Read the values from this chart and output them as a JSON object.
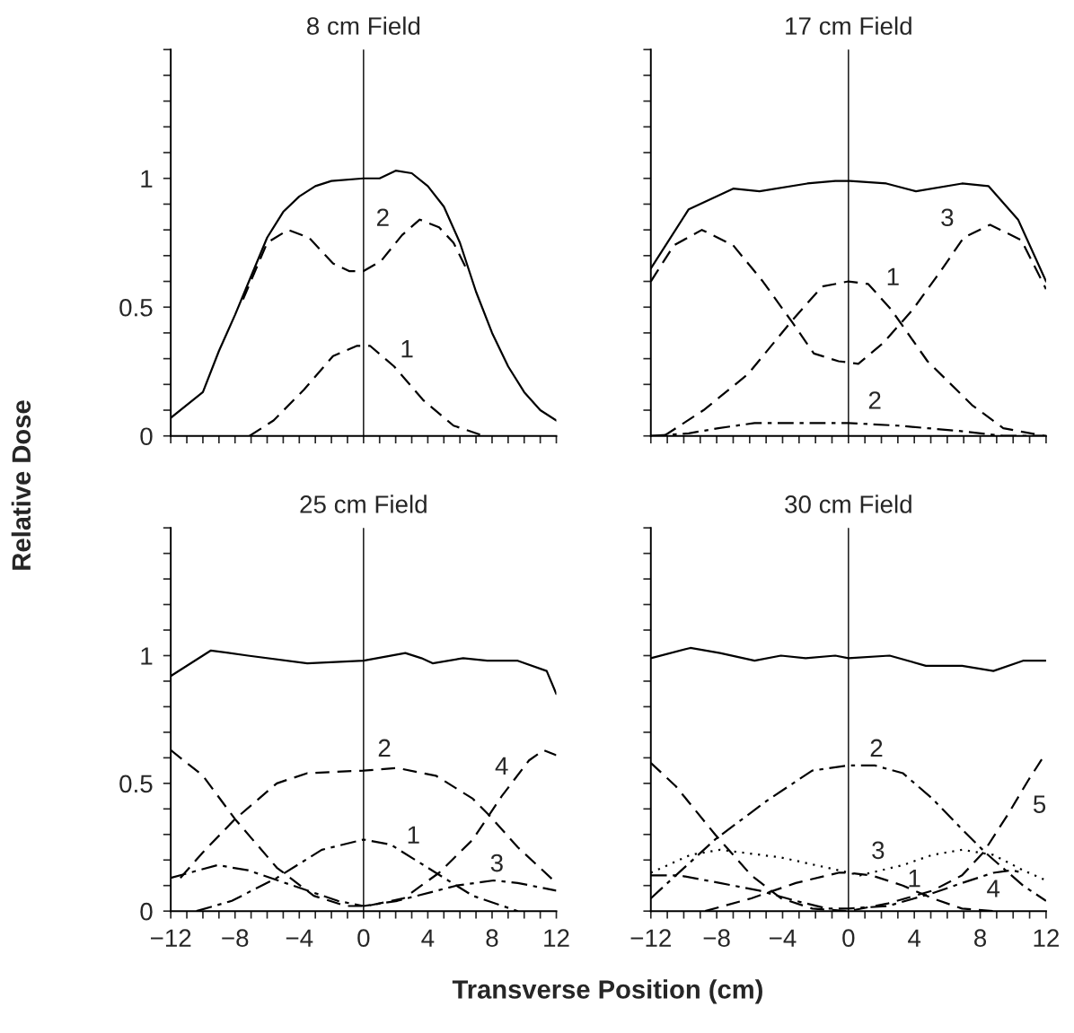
{
  "chart_data": [
    {
      "type": "line",
      "title": "8 cm Field",
      "ylabel": "Relative Dose",
      "xlim": [
        -12,
        12
      ],
      "ylim": [
        0,
        1.5
      ],
      "tick_labels": "y",
      "xticks": [
        {
          "value": -12,
          "label": null
        },
        {
          "value": -11,
          "label": null
        },
        {
          "value": -10,
          "label": null
        },
        {
          "value": -9,
          "label": null
        },
        {
          "value": -8,
          "label": null
        },
        {
          "value": -7,
          "label": null
        },
        {
          "value": -6,
          "label": null
        },
        {
          "value": -5,
          "label": null
        },
        {
          "value": -4,
          "label": null
        },
        {
          "value": -3,
          "label": null
        },
        {
          "value": -2,
          "label": null
        },
        {
          "value": -1,
          "label": null
        },
        {
          "value": 0,
          "label": null
        },
        {
          "value": 1,
          "label": null
        },
        {
          "value": 2,
          "label": null
        },
        {
          "value": 3,
          "label": null
        },
        {
          "value": 4,
          "label": null
        },
        {
          "value": 5,
          "label": null
        },
        {
          "value": 6,
          "label": null
        },
        {
          "value": 7,
          "label": null
        },
        {
          "value": 8,
          "label": null
        },
        {
          "value": 9,
          "label": null
        },
        {
          "value": 10,
          "label": null
        },
        {
          "value": 11,
          "label": null
        },
        {
          "value": 12,
          "label": null
        }
      ],
      "yticks": [
        0,
        {
          "value": 0.1,
          "label": null
        },
        {
          "value": 0.2,
          "label": null
        },
        {
          "value": 0.3,
          "label": null
        },
        {
          "value": 0.4,
          "label": null
        },
        0.5,
        {
          "value": 0.6,
          "label": null
        },
        {
          "value": 0.7,
          "label": null
        },
        {
          "value": 0.8,
          "label": null
        },
        {
          "value": 0.9,
          "label": null
        },
        1,
        {
          "value": 1.1,
          "label": null
        },
        {
          "value": 1.2,
          "label": null
        },
        {
          "value": 1.3,
          "label": null
        },
        {
          "value": 1.4,
          "label": null
        },
        {
          "value": 1.5,
          "label": null
        }
      ],
      "ref_lines": [
        {
          "axis": "x",
          "value": 0,
          "color": "#000000",
          "line_style": "solid"
        }
      ],
      "series": [
        {
          "color": "#000000",
          "line_style": "solid",
          "x": [
            -12,
            -10,
            -9,
            -8,
            -7,
            -6,
            -5,
            -4,
            -3,
            -2,
            0,
            1,
            2,
            3,
            4,
            5,
            6,
            7,
            8,
            9,
            10,
            11,
            12
          ],
          "values": [
            0.07,
            0.17,
            0.33,
            0.47,
            0.62,
            0.77,
            0.87,
            0.93,
            0.97,
            0.99,
            1.0,
            1.0,
            1.03,
            1.02,
            0.97,
            0.89,
            0.75,
            0.56,
            0.4,
            0.27,
            0.17,
            0.1,
            0.06
          ]
        },
        {
          "name": "2",
          "color": "#000000",
          "line_style": "dashed",
          "x": [
            -7.5,
            -6,
            -4.7,
            -3.4,
            -1.9,
            -0.9,
            0,
            1.1,
            2.4,
            3.5,
            4.7,
            5.6,
            6.4
          ],
          "values": [
            0.53,
            0.75,
            0.8,
            0.77,
            0.67,
            0.64,
            0.64,
            0.68,
            0.78,
            0.84,
            0.81,
            0.75,
            0.65
          ]
        },
        {
          "name": "1",
          "color": "#000000",
          "line_style": "dashed",
          "x": [
            -7.1,
            -5.6,
            -3.7,
            -1.9,
            -0.4,
            0.4,
            1.9,
            3.7,
            5.6,
            7.5
          ],
          "values": [
            0,
            0.06,
            0.18,
            0.31,
            0.35,
            0.35,
            0.27,
            0.14,
            0.04,
            0
          ]
        }
      ],
      "legend": false
    },
    {
      "type": "line",
      "title": "17 cm Field",
      "xlim": [
        -12,
        12
      ],
      "ylim": [
        0,
        1.5
      ],
      "tick_labels": false,
      "xticks": [
        {
          "value": -12,
          "label": null
        },
        {
          "value": -11,
          "label": null
        },
        {
          "value": -10,
          "label": null
        },
        {
          "value": -9,
          "label": null
        },
        {
          "value": -8,
          "label": null
        },
        {
          "value": -7,
          "label": null
        },
        {
          "value": -6,
          "label": null
        },
        {
          "value": -5,
          "label": null
        },
        {
          "value": -4,
          "label": null
        },
        {
          "value": -3,
          "label": null
        },
        {
          "value": -2,
          "label": null
        },
        {
          "value": -1,
          "label": null
        },
        {
          "value": 0,
          "label": null
        },
        {
          "value": 1,
          "label": null
        },
        {
          "value": 2,
          "label": null
        },
        {
          "value": 3,
          "label": null
        },
        {
          "value": 4,
          "label": null
        },
        {
          "value": 5,
          "label": null
        },
        {
          "value": 6,
          "label": null
        },
        {
          "value": 7,
          "label": null
        },
        {
          "value": 8,
          "label": null
        },
        {
          "value": 9,
          "label": null
        },
        {
          "value": 10,
          "label": null
        },
        {
          "value": 11,
          "label": null
        },
        {
          "value": 12,
          "label": null
        }
      ],
      "yticks": [
        {
          "value": 0,
          "label": null
        },
        {
          "value": 0.1,
          "label": null
        },
        {
          "value": 0.2,
          "label": null
        },
        {
          "value": 0.3,
          "label": null
        },
        {
          "value": 0.4,
          "label": null
        },
        {
          "value": 0.5,
          "label": null
        },
        {
          "value": 0.6,
          "label": null
        },
        {
          "value": 0.7,
          "label": null
        },
        {
          "value": 0.8,
          "label": null
        },
        {
          "value": 0.9,
          "label": null
        },
        {
          "value": 1,
          "label": null
        },
        {
          "value": 1.1,
          "label": null
        },
        {
          "value": 1.2,
          "label": null
        },
        {
          "value": 1.3,
          "label": null
        },
        {
          "value": 1.4,
          "label": null
        },
        {
          "value": 1.5,
          "label": null
        }
      ],
      "ref_lines": [
        {
          "axis": "x",
          "value": 0,
          "color": "#000000",
          "line_style": "solid"
        }
      ],
      "series": [
        {
          "color": "#000000",
          "line_style": "solid",
          "x": [
            -12,
            -9.7,
            -7,
            -5.4,
            -2.5,
            -0.8,
            0.1,
            2.3,
            4.1,
            6.9,
            8.5,
            10.3,
            12
          ],
          "values": [
            0.65,
            0.88,
            0.96,
            0.95,
            0.98,
            0.99,
            0.99,
            0.98,
            0.95,
            0.98,
            0.97,
            0.84,
            0.6
          ]
        },
        {
          "name": "3",
          "color": "#000000",
          "line_style": "dashed",
          "x": [
            -12,
            -10.6,
            -8.9,
            -7,
            -5.2,
            -3.4,
            -2.1,
            -0.6,
            0.6,
            2.1,
            3.9,
            5.6,
            7,
            8.6,
            10.5,
            12
          ],
          "values": [
            0.6,
            0.74,
            0.8,
            0.74,
            0.6,
            0.44,
            0.32,
            0.29,
            0.28,
            0.36,
            0.49,
            0.64,
            0.77,
            0.82,
            0.76,
            0.57
          ]
        },
        {
          "name": "1",
          "color": "#000000",
          "line_style": "dashed",
          "x": [
            -11.2,
            -8.8,
            -6.1,
            -3.4,
            -1.6,
            0,
            1.2,
            2.6,
            4.8,
            7.5,
            9.4,
            11.9
          ],
          "values": [
            0,
            0.1,
            0.24,
            0.45,
            0.58,
            0.6,
            0.59,
            0.49,
            0.29,
            0.12,
            0.03,
            0
          ]
        },
        {
          "name": "2",
          "color": "#000000",
          "line_style": "dashdot",
          "x": [
            -12,
            -9.7,
            -7.9,
            -5.7,
            -3.4,
            0,
            3,
            6.6,
            9.4,
            12
          ],
          "values": [
            0,
            0.01,
            0.03,
            0.05,
            0.05,
            0.05,
            0.04,
            0.02,
            0,
            0
          ]
        }
      ],
      "legend": false
    },
    {
      "type": "line",
      "title": "25 cm Field",
      "xlabel": "Transverse Position (cm)",
      "xlim": [
        -12,
        12
      ],
      "ylim": [
        0,
        1.5
      ],
      "xticks": [
        {
          "value": -12,
          "label": "−12"
        },
        {
          "value": -11,
          "label": null
        },
        {
          "value": -10,
          "label": null
        },
        {
          "value": -9,
          "label": null
        },
        {
          "value": -8,
          "label": "−8"
        },
        {
          "value": -7,
          "label": null
        },
        {
          "value": -6,
          "label": null
        },
        {
          "value": -5,
          "label": null
        },
        {
          "value": -4,
          "label": "−4"
        },
        {
          "value": -3,
          "label": null
        },
        {
          "value": -2,
          "label": null
        },
        {
          "value": -1,
          "label": null
        },
        0,
        {
          "value": 1,
          "label": null
        },
        {
          "value": 2,
          "label": null
        },
        {
          "value": 3,
          "label": null
        },
        4,
        {
          "value": 5,
          "label": null
        },
        {
          "value": 6,
          "label": null
        },
        {
          "value": 7,
          "label": null
        },
        8,
        {
          "value": 9,
          "label": null
        },
        {
          "value": 10,
          "label": null
        },
        {
          "value": 11,
          "label": null
        },
        12
      ],
      "yticks": [
        0,
        {
          "value": 0.1,
          "label": null
        },
        {
          "value": 0.2,
          "label": null
        },
        {
          "value": 0.3,
          "label": null
        },
        {
          "value": 0.4,
          "label": null
        },
        0.5,
        {
          "value": 0.6,
          "label": null
        },
        {
          "value": 0.7,
          "label": null
        },
        {
          "value": 0.8,
          "label": null
        },
        {
          "value": 0.9,
          "label": null
        },
        1,
        {
          "value": 1.1,
          "label": null
        },
        {
          "value": 1.2,
          "label": null
        },
        {
          "value": 1.3,
          "label": null
        },
        {
          "value": 1.4,
          "label": null
        },
        {
          "value": 1.5,
          "label": null
        }
      ],
      "ref_lines": [
        {
          "axis": "x",
          "value": 0,
          "color": "#000000",
          "line_style": "solid"
        }
      ],
      "series": [
        {
          "color": "#000000",
          "line_style": "solid",
          "x": [
            -12,
            -9.5,
            -7.2,
            -3.5,
            0,
            2.6,
            3.6,
            4.3,
            6.2,
            7.7,
            9.6,
            11.4,
            12
          ],
          "values": [
            0.92,
            1.02,
            1.0,
            0.97,
            0.98,
            1.01,
            0.99,
            0.97,
            0.99,
            0.98,
            0.98,
            0.94,
            0.85
          ]
        },
        {
          "name": "4",
          "color": "#000000",
          "line_style": "dashed",
          "x": [
            -12,
            -10,
            -8,
            -5.4,
            -3.1,
            -1.1,
            0.2,
            2.5,
            4.7,
            6.8,
            8.6,
            10.3,
            11.2,
            12
          ],
          "values": [
            0.63,
            0.53,
            0.36,
            0.17,
            0.06,
            0.02,
            0.02,
            0.05,
            0.15,
            0.28,
            0.45,
            0.59,
            0.63,
            0.61
          ]
        },
        {
          "name": "2",
          "color": "#000000",
          "line_style": "dashed",
          "x": [
            -11.4,
            -10,
            -8,
            -5.4,
            -3.5,
            0,
            2.1,
            4.5,
            6.8,
            7.9,
            9.6,
            12
          ],
          "values": [
            0.13,
            0.23,
            0.36,
            0.5,
            0.54,
            0.55,
            0.56,
            0.53,
            0.44,
            0.37,
            0.25,
            0.11
          ]
        },
        {
          "name": "1",
          "color": "#000000",
          "line_style": "dashdot",
          "x": [
            -10.4,
            -8.2,
            -5.4,
            -2.6,
            0,
            1.7,
            4.5,
            6.8,
            9.6
          ],
          "values": [
            0,
            0.04,
            0.13,
            0.24,
            0.28,
            0.26,
            0.15,
            0.06,
            0
          ]
        },
        {
          "name": "3",
          "color": "#000000",
          "line_style": "dashdot",
          "x": [
            -12,
            -9.1,
            -7.2,
            -4.4,
            -1.6,
            0,
            2.1,
            5.8,
            8.1,
            9.6,
            12
          ],
          "values": [
            0.13,
            0.18,
            0.16,
            0.1,
            0.04,
            0.02,
            0.04,
            0.1,
            0.12,
            0.11,
            0.08
          ]
        }
      ],
      "legend": false
    },
    {
      "type": "line",
      "title": "30 cm Field",
      "xlim": [
        -12,
        12
      ],
      "ylim": [
        0,
        1.5
      ],
      "tick_labels": "x",
      "xticks": [
        {
          "value": -12,
          "label": "−12"
        },
        {
          "value": -11,
          "label": null
        },
        {
          "value": -10,
          "label": null
        },
        {
          "value": -9,
          "label": null
        },
        {
          "value": -8,
          "label": "−8"
        },
        {
          "value": -7,
          "label": null
        },
        {
          "value": -6,
          "label": null
        },
        {
          "value": -5,
          "label": null
        },
        {
          "value": -4,
          "label": "−4"
        },
        {
          "value": -3,
          "label": null
        },
        {
          "value": -2,
          "label": null
        },
        {
          "value": -1,
          "label": null
        },
        0,
        {
          "value": 1,
          "label": null
        },
        {
          "value": 2,
          "label": null
        },
        {
          "value": 3,
          "label": null
        },
        4,
        {
          "value": 5,
          "label": null
        },
        {
          "value": 6,
          "label": null
        },
        {
          "value": 7,
          "label": null
        },
        8,
        {
          "value": 9,
          "label": null
        },
        {
          "value": 10,
          "label": null
        },
        {
          "value": 11,
          "label": null
        },
        12
      ],
      "yticks": [
        {
          "value": 0,
          "label": null
        },
        {
          "value": 0.1,
          "label": null
        },
        {
          "value": 0.2,
          "label": null
        },
        {
          "value": 0.3,
          "label": null
        },
        {
          "value": 0.4,
          "label": null
        },
        {
          "value": 0.5,
          "label": null
        },
        {
          "value": 0.6,
          "label": null
        },
        {
          "value": 0.7,
          "label": null
        },
        {
          "value": 0.8,
          "label": null
        },
        {
          "value": 0.9,
          "label": null
        },
        {
          "value": 1,
          "label": null
        },
        {
          "value": 1.1,
          "label": null
        },
        {
          "value": 1.2,
          "label": null
        },
        {
          "value": 1.3,
          "label": null
        },
        {
          "value": 1.4,
          "label": null
        },
        {
          "value": 1.5,
          "label": null
        }
      ],
      "ref_lines": [
        {
          "axis": "x",
          "value": 0,
          "color": "#000000",
          "line_style": "solid"
        }
      ],
      "series": [
        {
          "color": "#000000",
          "line_style": "solid",
          "x": [
            -12,
            -9.6,
            -7.8,
            -5.7,
            -4.1,
            -2.6,
            -0.8,
            0,
            2.5,
            4.7,
            6.9,
            8.8,
            10.6,
            12
          ],
          "values": [
            0.99,
            1.03,
            1.01,
            0.98,
            1.0,
            0.99,
            1.0,
            0.99,
            1.0,
            0.96,
            0.96,
            0.94,
            0.98,
            0.98
          ]
        },
        {
          "name": "2",
          "color": "#000000",
          "line_style": "dashdot",
          "x": [
            -12,
            -8.1,
            -5,
            -2.2,
            0,
            1.6,
            3.3,
            5.1,
            6.9,
            8.3,
            10.6,
            12
          ],
          "values": [
            0.05,
            0.28,
            0.43,
            0.55,
            0.57,
            0.57,
            0.54,
            0.44,
            0.32,
            0.23,
            0.1,
            0.04
          ]
        },
        {
          "name": "3",
          "color": "#000000",
          "line_style": "dotted",
          "x": [
            -12,
            -9.6,
            -7.8,
            -4.1,
            -1.3,
            0.7,
            3.3,
            5.1,
            6.9,
            8.8,
            10.6,
            12
          ],
          "values": [
            0.15,
            0.22,
            0.24,
            0.21,
            0.17,
            0.14,
            0.18,
            0.22,
            0.24,
            0.22,
            0.16,
            0.12
          ]
        },
        {
          "name": "1",
          "color": "#000000",
          "line_style": "dashed",
          "x": [
            -8.7,
            -5.9,
            -3.2,
            -0.6,
            0,
            1.4,
            3.3,
            5.1,
            6.9,
            8.8
          ],
          "values": [
            0,
            0.05,
            0.11,
            0.15,
            0.15,
            0.14,
            0.1,
            0.05,
            0.01,
            0
          ]
        },
        {
          "name": "4",
          "color": "#000000",
          "line_style": "dashdot",
          "x": [
            -12,
            -10.3,
            -7.8,
            -5.4,
            -3.2,
            -1.3,
            0,
            2.4,
            5.1,
            6.9,
            8.8,
            9.9,
            10.6
          ],
          "values": [
            0.14,
            0.14,
            0.11,
            0.08,
            0.04,
            0.01,
            0.01,
            0.02,
            0.07,
            0.11,
            0.15,
            0.16,
            0.15
          ]
        },
        {
          "name": "5",
          "color": "#000000",
          "line_style": "dashed",
          "x": [
            -12,
            -10.5,
            -8.1,
            -5.9,
            -4.1,
            -2.2,
            0,
            2.4,
            5.1,
            6.9,
            8.2,
            9.7,
            10.9,
            12
          ],
          "values": [
            0.58,
            0.49,
            0.3,
            0.14,
            0.05,
            0.01,
            0,
            0.03,
            0.08,
            0.14,
            0.23,
            0.38,
            0.51,
            0.62
          ]
        }
      ],
      "legend": false
    }
  ]
}
